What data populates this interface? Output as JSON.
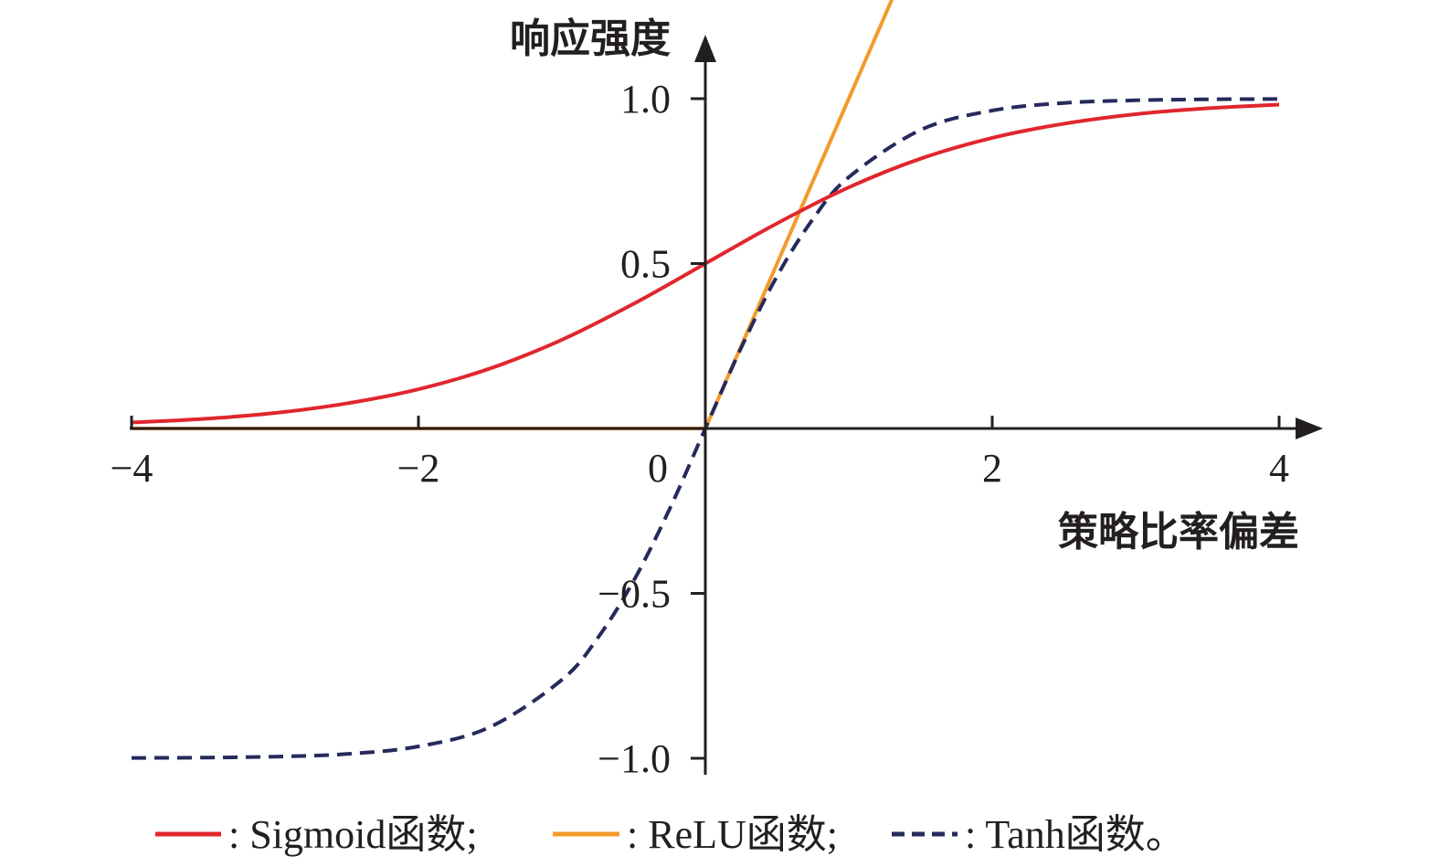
{
  "chart_data": {
    "type": "line",
    "title": "",
    "xlabel": "策略比率偏差",
    "ylabel": "响应强度",
    "xlim": [
      -4,
      4
    ],
    "ylim": [
      -1.0,
      1.0
    ],
    "x_ticks": [
      -4,
      -2,
      0,
      2,
      4
    ],
    "x_tick_labels": [
      "−4",
      "−2",
      "0",
      "2",
      "4"
    ],
    "y_ticks": [
      -1.0,
      -0.5,
      0.5,
      1.0
    ],
    "y_tick_labels": [
      "−1.0",
      "−0.5",
      "0.5",
      "1.0"
    ],
    "grid": false,
    "legend_position": "bottom",
    "series": [
      {
        "name": "Sigmoid函数",
        "legend_label": ": Sigmoid函数;",
        "color": "#e1262d",
        "dash": "solid",
        "x": [
          -4,
          -3.5,
          -3,
          -2.5,
          -2,
          -1.5,
          -1,
          -0.5,
          0,
          0.5,
          1,
          1.5,
          2,
          2.5,
          3,
          3.5,
          4
        ],
        "values": [
          0.018,
          0.029,
          0.047,
          0.076,
          0.119,
          0.182,
          0.269,
          0.378,
          0.5,
          0.622,
          0.731,
          0.818,
          0.881,
          0.924,
          0.953,
          0.971,
          0.982
        ]
      },
      {
        "name": "ReLU函数",
        "legend_label": ": ReLU函数;",
        "color": "#f39a2b",
        "dash": "solid",
        "x": [
          -4,
          -3,
          -2,
          -1,
          0,
          0.5,
          1,
          1.3
        ],
        "values": [
          0,
          0,
          0,
          0,
          0,
          0.5,
          1.0,
          1.3
        ]
      },
      {
        "name": "Tanh函数",
        "legend_label": ": Tanh函数。",
        "color": "#252a5c",
        "dash": "dashed",
        "x": [
          -4,
          -3.5,
          -3,
          -2.5,
          -2,
          -1.5,
          -1,
          -0.75,
          -0.5,
          -0.25,
          0,
          0.25,
          0.5,
          0.75,
          1,
          1.5,
          2,
          2.5,
          3,
          3.5,
          4
        ],
        "values": [
          -0.999,
          -0.998,
          -0.995,
          -0.987,
          -0.964,
          -0.905,
          -0.762,
          -0.635,
          -0.462,
          -0.245,
          0,
          0.245,
          0.462,
          0.635,
          0.762,
          0.905,
          0.964,
          0.987,
          0.995,
          0.998,
          0.999
        ]
      }
    ]
  }
}
